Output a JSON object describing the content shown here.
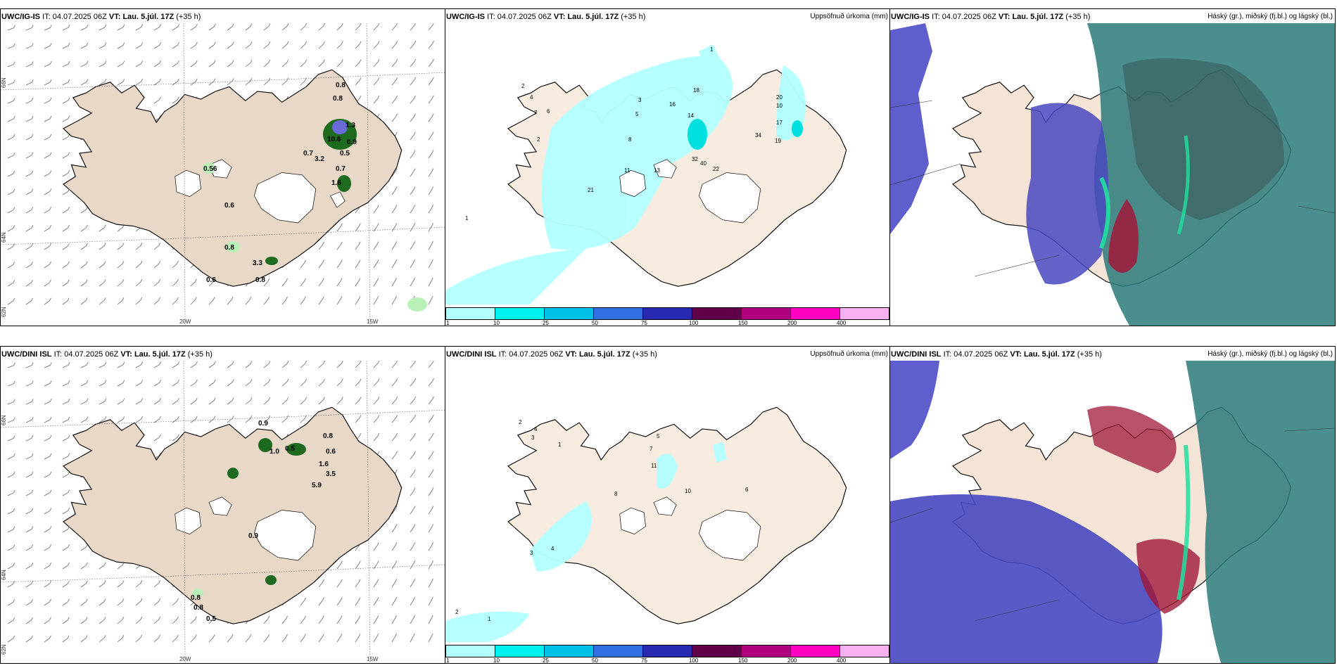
{
  "colors": {
    "land": "#f3e4d6",
    "land_wind_panel": "#e8d8c8",
    "ice": "#ffffff",
    "coast": "#000000",
    "precip_light": "#b3ffff",
    "cloud_high": "#2a7a7a",
    "cloud_mid": "#20c090",
    "cloud_low": "#5050c8",
    "cloud_red": "#a01838",
    "ocean_low": "#4848c0"
  },
  "rows": [
    {
      "model": "UWC/IG-IS",
      "it_label": "IT:",
      "it_value": "04.07.2025 06Z",
      "vt_label": "VT:",
      "vt_value": "Lau. 5.júl. 17Z",
      "lead": "(+35 h)",
      "precip_title": "Uppsöfnuð úrkoma (mm)",
      "cloud_title": "Háský (gr.), miðský (fj.bl.) og lágský (bl.)",
      "wind_labels": [
        "0.8",
        "0.8",
        "1.3",
        "10.6",
        "0.9",
        "0.7",
        "3.2",
        "0.5",
        "0.7",
        "1.6",
        "0.56",
        "0.6",
        "0.8",
        "3.3",
        "0.6",
        "0.8"
      ],
      "precip_labels": [
        "2",
        "4",
        "7",
        "6",
        "5",
        "3",
        "2",
        "1",
        "18",
        "16",
        "14",
        "32",
        "40",
        "22",
        "34",
        "20",
        "10",
        "17",
        "19",
        "13",
        "11",
        "21",
        "8",
        "1"
      ]
    },
    {
      "model": "UWC/DINI ISL",
      "it_label": "IT:",
      "it_value": "04.07.2025 06Z",
      "vt_label": "VT:",
      "vt_value": "Lau. 5.júl. 17Z",
      "lead": "(+35 h)",
      "precip_title": "Uppsöfnuð úrkoma (mm)",
      "cloud_title": "Háský (gr.), miðský (fj.bl.) og lágský (bl.)",
      "wind_labels": [
        "0.9",
        "0.8",
        "1.0",
        "0.5",
        "0.6",
        "1.6",
        "3.5",
        "5.9",
        "0.9",
        "0.8",
        "0.8",
        "0.5"
      ],
      "precip_labels": [
        "2",
        "4",
        "3",
        "1",
        "7",
        "11",
        "5",
        "10",
        "8",
        "6",
        "4",
        "3",
        "2",
        "1"
      ]
    }
  ],
  "axis_labels": {
    "lat_top": "66N",
    "lat_bottom": "64N",
    "lat_corner": "62N",
    "lon_left": "20W",
    "lon_right": "15W"
  },
  "colorbar": {
    "ticks": [
      "1",
      "10",
      "25",
      "50",
      "75",
      "100",
      "150",
      "200",
      "400"
    ],
    "colors": [
      "#b3ffff",
      "#00f0f0",
      "#00c0e8",
      "#3070e0",
      "#2828b0",
      "#600048",
      "#b00080",
      "#ff00c0",
      "#f8b0f0"
    ]
  }
}
